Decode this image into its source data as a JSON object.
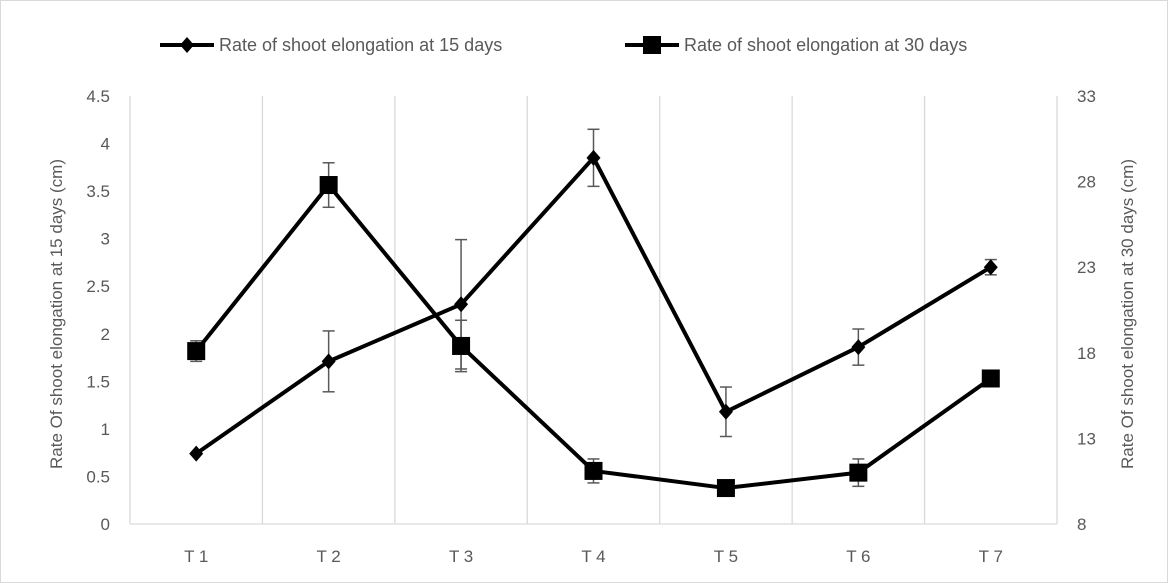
{
  "chart_data": {
    "type": "line",
    "categories": [
      "T 1",
      "T 2",
      "T 3",
      "T 4",
      "T 5",
      "T 6",
      "T 7"
    ],
    "series": [
      {
        "name": "Rate of shoot elongation at 15 days",
        "axis": "left",
        "marker": "diamond",
        "values": [
          0.74,
          1.71,
          2.31,
          3.85,
          1.18,
          1.86,
          2.7
        ],
        "error": [
          0.0,
          0.32,
          0.68,
          0.3,
          0.26,
          0.19,
          0.08
        ]
      },
      {
        "name": "Rate of shoot elongation at 30 days",
        "axis": "right",
        "marker": "square",
        "values": [
          18.1,
          27.8,
          18.4,
          11.1,
          10.1,
          11.0,
          16.5
        ],
        "error": [
          0.6,
          1.3,
          1.5,
          0.7,
          0.0,
          0.8,
          0.0
        ]
      }
    ],
    "ylabel": "Rate Of shoot elongation at 15 days (cm)",
    "y2label": "Rate Of shoot elongation at 30 days (cm)",
    "ylim": [
      0,
      4.5
    ],
    "y2lim": [
      8,
      33
    ],
    "yticks": [
      "0",
      "0.5",
      "1",
      "1.5",
      "2",
      "2.5",
      "3",
      "3.5",
      "4",
      "4.5"
    ],
    "y2ticks": [
      "8",
      "13",
      "18",
      "23",
      "28",
      "33"
    ],
    "vertical_gridlines": true,
    "legend": "top",
    "line_color": "#000000",
    "grid_color": "#d9d9d9"
  }
}
